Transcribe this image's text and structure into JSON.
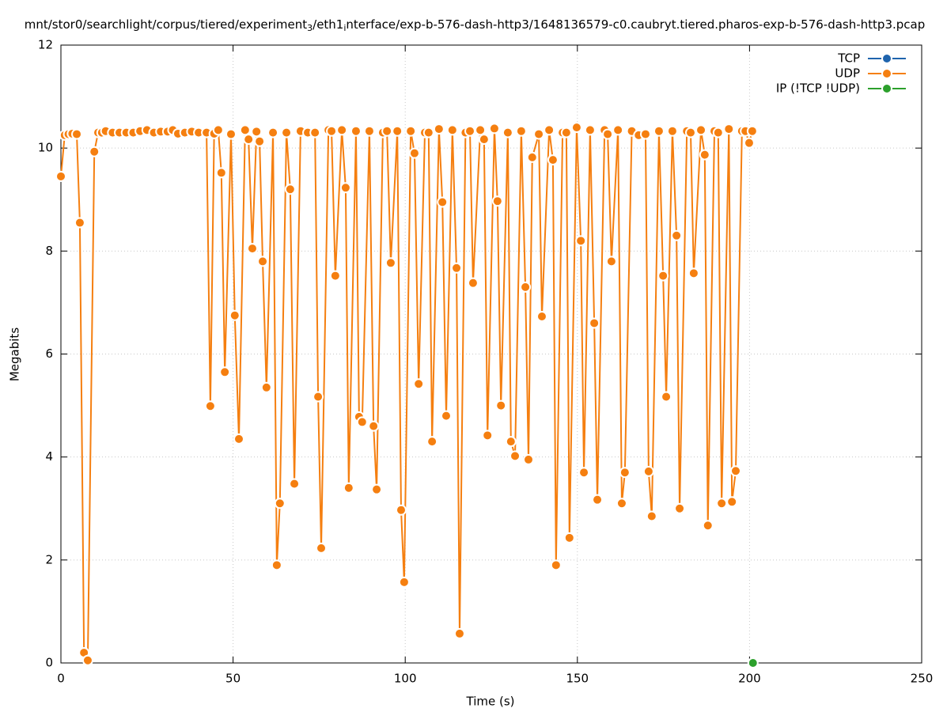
{
  "chart_data": {
    "type": "line",
    "title": [
      "mnt/stor0/searchlight/corpus/tiered/experiment",
      "3",
      "/eth1",
      "i",
      "nterface/exp-b-576-dash-http3/1648136579-c0.caubryt.tiered.pharos-exp-b-576-dash-http3.pcap"
    ],
    "x_label": "Time (s)",
    "y_label": "Megabits",
    "xlim": [
      0,
      250
    ],
    "xticks": [
      0,
      50,
      100,
      150,
      200,
      250
    ],
    "ylim": [
      0,
      12
    ],
    "yticks": [
      0,
      2,
      4,
      6,
      8,
      10,
      12
    ],
    "grid": true,
    "legend": "top-right",
    "series": [
      {
        "name": "TCP",
        "color": "#1f64ad",
        "x": [],
        "values": []
      },
      {
        "name": "UDP",
        "color": "#f57f10",
        "x": [
          0,
          1.1,
          2.2,
          3.3,
          4.6,
          5.5,
          6.7,
          7.8,
          9.7,
          10.8,
          11.9,
          13,
          15,
          17,
          19,
          21,
          23,
          25,
          27,
          29,
          31,
          32.5,
          34,
          36,
          38,
          40,
          42.3,
          43.4,
          44.5,
          45.7,
          46.6,
          47.6,
          49.4,
          50.5,
          51.7,
          53.5,
          54.5,
          55.6,
          56.8,
          57.7,
          58.6,
          59.7,
          61.6,
          62.7,
          63.6,
          65.5,
          66.6,
          67.8,
          69.6,
          71.7,
          73.8,
          74.7,
          75.6,
          77.7,
          78.6,
          79.7,
          81.6,
          82.7,
          83.6,
          85.7,
          86.6,
          87.5,
          89.6,
          90.8,
          91.7,
          93.5,
          94.7,
          95.8,
          97.7,
          98.8,
          99.7,
          101.6,
          102.7,
          103.9,
          105.7,
          106.8,
          107.8,
          109.8,
          110.8,
          111.9,
          113.7,
          114.9,
          115.8,
          117.5,
          118.8,
          119.7,
          121.8,
          122.9,
          123.9,
          125.9,
          126.8,
          127.8,
          129.8,
          130.7,
          131.9,
          133.7,
          134.9,
          135.8,
          136.9,
          138.8,
          139.7,
          141.8,
          142.9,
          143.8,
          145.7,
          146.8,
          147.7,
          149.8,
          151.0,
          151.9,
          153.7,
          154.9,
          155.8,
          157.9,
          158.8,
          159.9,
          161.8,
          162.9,
          163.8,
          165.8,
          167.8,
          169.8,
          170.7,
          171.6,
          173.7,
          174.9,
          175.8,
          177.6,
          178.8,
          179.7,
          181.8,
          182.9,
          183.8,
          185.9,
          187.0,
          187.9,
          189.8,
          190.9,
          191.9,
          194.0,
          194.9,
          196.0,
          197.8,
          198.8,
          199.9,
          200.8
        ],
        "values": [
          9.45,
          10.25,
          10.27,
          10.28,
          10.27,
          8.55,
          0.2,
          0.05,
          9.93,
          10.3,
          10.3,
          10.33,
          10.3,
          10.3,
          10.3,
          10.3,
          10.33,
          10.35,
          10.3,
          10.32,
          10.32,
          10.35,
          10.28,
          10.3,
          10.32,
          10.3,
          10.3,
          4.99,
          10.28,
          10.35,
          9.52,
          5.65,
          10.27,
          6.75,
          4.35,
          10.35,
          10.17,
          8.05,
          10.32,
          10.13,
          7.8,
          5.35,
          10.3,
          1.9,
          3.1,
          10.3,
          9.2,
          3.48,
          10.33,
          10.3,
          10.3,
          5.17,
          2.23,
          10.35,
          10.33,
          7.52,
          10.35,
          9.23,
          3.4,
          10.33,
          4.78,
          4.68,
          10.33,
          4.6,
          3.37,
          10.3,
          10.33,
          7.77,
          10.33,
          2.97,
          1.57,
          10.33,
          9.9,
          5.42,
          10.3,
          10.3,
          4.3,
          10.37,
          8.95,
          4.8,
          10.35,
          7.67,
          0.57,
          10.3,
          10.33,
          7.38,
          10.35,
          10.17,
          4.42,
          10.38,
          8.97,
          5.0,
          10.3,
          4.3,
          4.02,
          10.33,
          7.3,
          3.95,
          9.82,
          10.27,
          6.73,
          10.35,
          9.77,
          1.9,
          10.3,
          10.3,
          2.43,
          10.4,
          8.2,
          3.7,
          10.35,
          6.6,
          3.17,
          10.35,
          10.27,
          7.8,
          10.35,
          3.1,
          3.7,
          10.33,
          10.25,
          10.27,
          3.72,
          2.85,
          10.33,
          7.52,
          5.17,
          10.33,
          8.3,
          3.0,
          10.33,
          10.3,
          7.57,
          10.35,
          9.87,
          2.67,
          10.33,
          10.3,
          3.1,
          10.37,
          3.13,
          3.73,
          10.33,
          10.33,
          10.1,
          10.33
        ]
      },
      {
        "name": "IP (!TCP  !UDP)",
        "color": "#2ca02c",
        "x": [
          201
        ],
        "values": [
          0
        ]
      }
    ]
  }
}
